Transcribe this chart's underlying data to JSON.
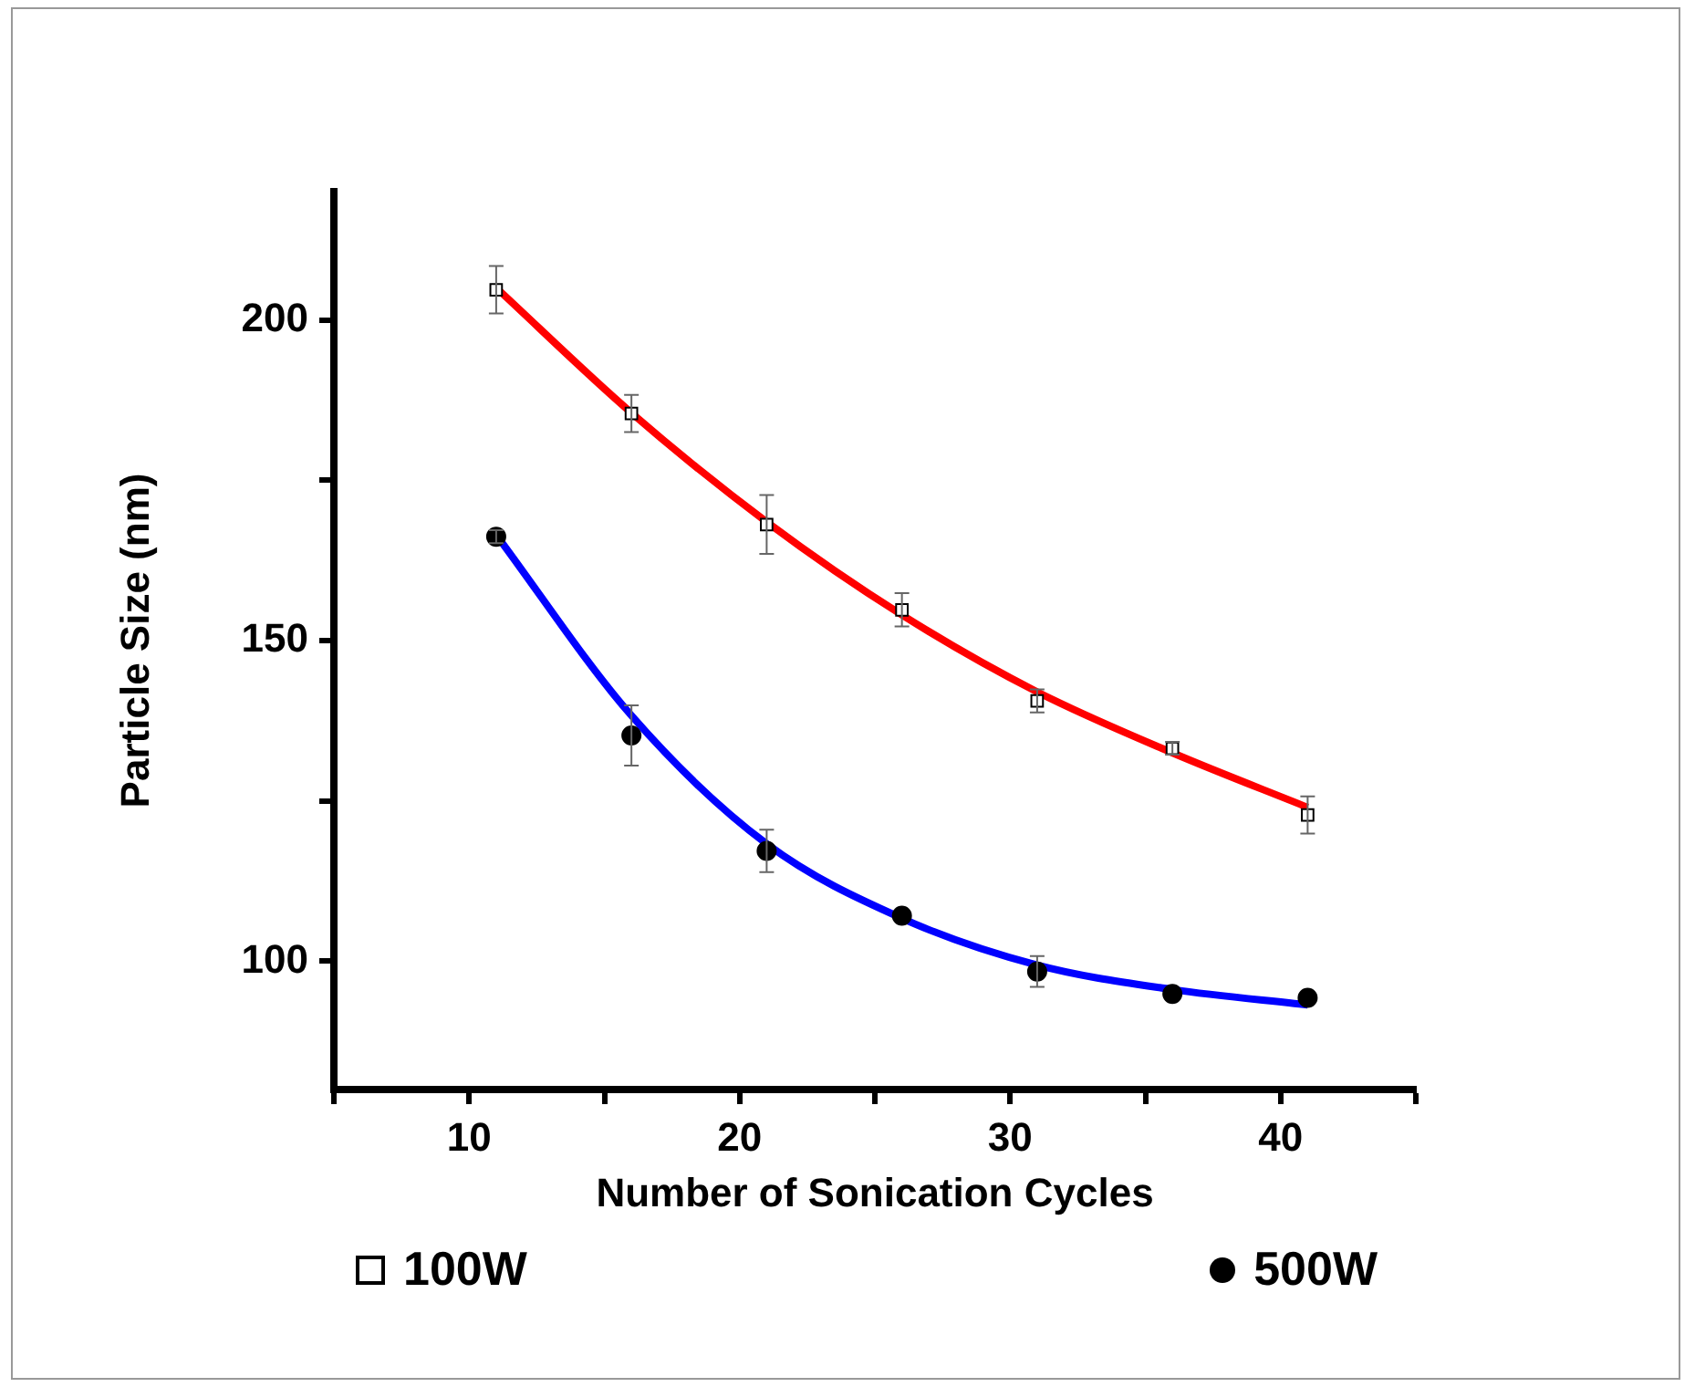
{
  "chart_data": {
    "type": "scatter",
    "xlabel": "Number of Sonication Cycles",
    "ylabel": "Particle Size (nm)",
    "xlim": [
      5,
      45
    ],
    "xticks": [
      {
        "value": 5,
        "label": null
      },
      10,
      {
        "value": 15,
        "label": null
      },
      20,
      {
        "value": 25,
        "label": null
      },
      30,
      {
        "value": 35,
        "label": null
      },
      40,
      {
        "value": 45,
        "label": null
      }
    ],
    "ylim": [
      80,
      220
    ],
    "yticks": [
      100,
      {
        "value": 125,
        "label": null
      },
      150,
      {
        "value": 175,
        "label": null
      },
      200
    ],
    "grid": false,
    "legend": "bottom",
    "series": [
      {
        "type": "line",
        "color": "#ff0000",
        "marker": "none",
        "x": [
          11,
          16,
          21,
          26,
          31,
          36,
          41
        ],
        "values": [
          205,
          185.5,
          168.5,
          154,
          142,
          132.5,
          124
        ]
      },
      {
        "type": "line",
        "color": "#0000ff",
        "marker": "none",
        "x": [
          11,
          16,
          21,
          26,
          31,
          36,
          41
        ],
        "values": [
          166.5,
          138.3,
          118.3,
          106.7,
          99.4,
          95.6,
          93.2
        ]
      },
      {
        "type": "scatter",
        "name": "100W",
        "color": "#000000",
        "marker": "square",
        "x": [
          11,
          16,
          21,
          26,
          31,
          36,
          41
        ],
        "values": [
          204.7,
          185.4,
          168.1,
          154.8,
          140.6,
          133.2,
          122.8
        ],
        "errors": [
          3.7,
          2.9,
          4.6,
          2.6,
          1.8,
          1,
          2.9
        ]
      },
      {
        "type": "scatter",
        "name": "500W",
        "color": "#000000",
        "marker": "circle",
        "x": [
          11,
          16,
          21,
          26,
          31,
          36,
          41
        ],
        "values": [
          166.2,
          135.2,
          117.2,
          107.1,
          98.4,
          94.9,
          94.3
        ],
        "errors": [
          1,
          4.7,
          3.3,
          null,
          2.4,
          null,
          null
        ]
      }
    ]
  }
}
